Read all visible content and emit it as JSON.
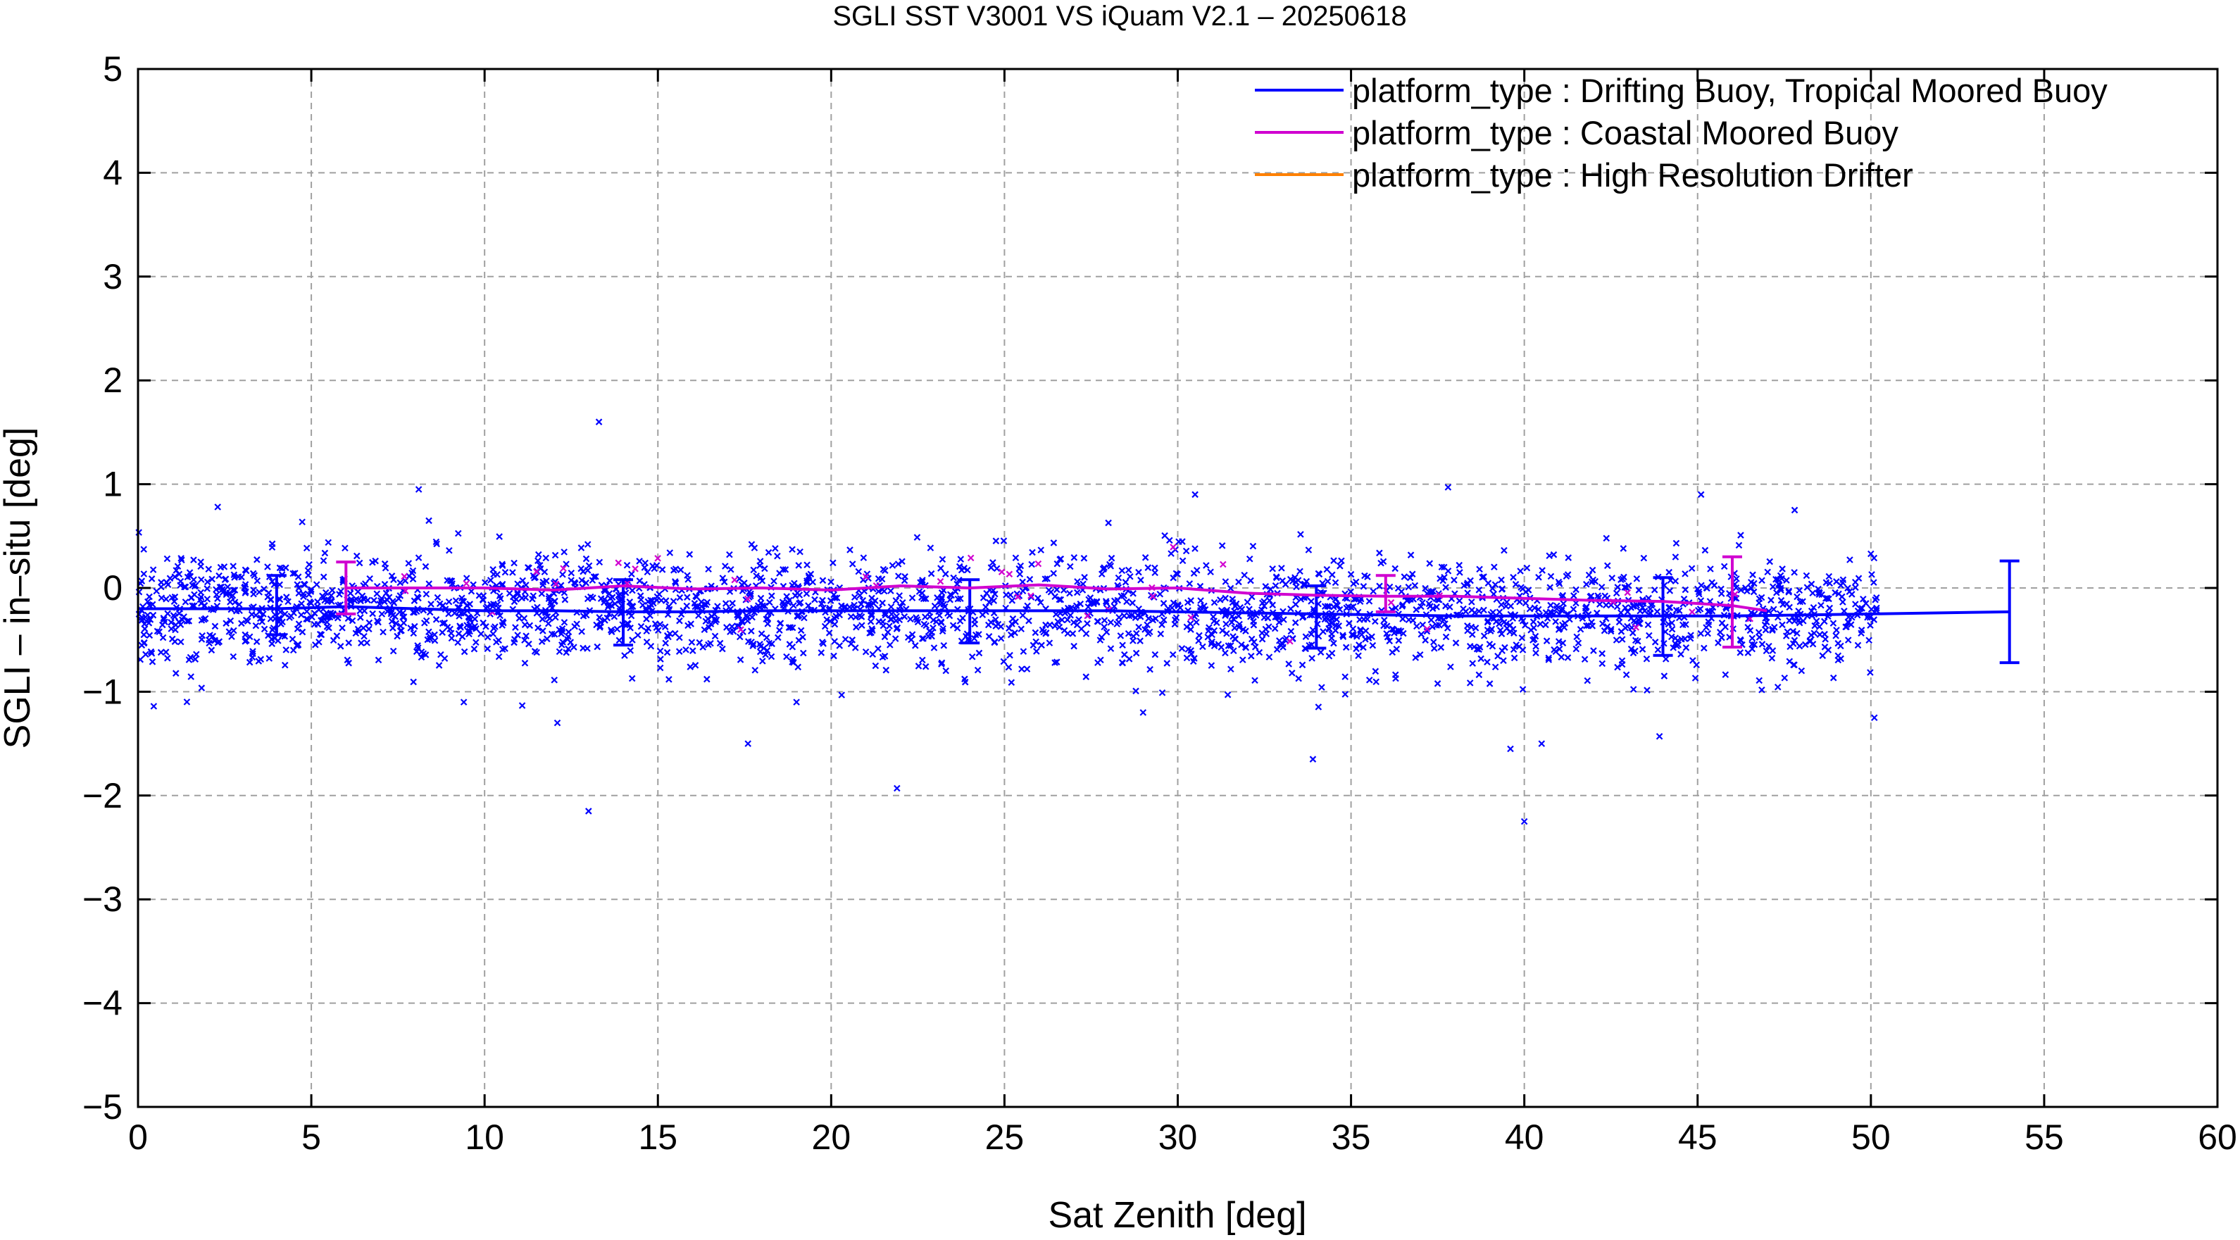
{
  "chart_data": {
    "type": "scatter",
    "title": "SGLI SST V3001 VS iQuam V2.1  – 20250618",
    "xlabel": "Sat Zenith [deg]",
    "ylabel": "SGLI – in–situ [deg]",
    "xlim": [
      0,
      60
    ],
    "ylim": [
      -5,
      5
    ],
    "x_ticks": [
      "0",
      "5",
      "10",
      "15",
      "20",
      "25",
      "30",
      "35",
      "40",
      "45",
      "50",
      "55",
      "60"
    ],
    "y_ticks": [
      "−5",
      "−4",
      "−3",
      "−2",
      "−1",
      "0",
      "1",
      "2",
      "3",
      "4",
      "5"
    ],
    "grid": true,
    "legend_position": "top-right",
    "series": [
      {
        "name": "platform_type : Drifting Buoy, Tropical Moored Buoy",
        "color": "#0000ff",
        "mean_line": {
          "x": [
            0,
            4,
            6,
            8,
            10,
            12,
            14,
            16,
            18,
            20,
            22,
            24,
            26,
            28,
            30,
            32,
            34,
            36,
            38,
            40,
            42,
            44,
            46,
            48,
            50,
            54
          ],
          "y": [
            -0.2,
            -0.2,
            -0.18,
            -0.2,
            -0.22,
            -0.22,
            -0.23,
            -0.23,
            -0.22,
            -0.22,
            -0.22,
            -0.22,
            -0.22,
            -0.22,
            -0.23,
            -0.24,
            -0.25,
            -0.26,
            -0.27,
            -0.27,
            -0.27,
            -0.27,
            -0.27,
            -0.26,
            -0.25,
            -0.23
          ]
        },
        "error_bars": [
          {
            "x": 4,
            "mean": -0.2,
            "low": -0.45,
            "high": 0.12
          },
          {
            "x": 14,
            "mean": -0.23,
            "low": -0.55,
            "high": 0.08
          },
          {
            "x": 24,
            "mean": -0.22,
            "low": -0.53,
            "high": 0.08
          },
          {
            "x": 34,
            "mean": -0.25,
            "low": -0.58,
            "high": 0.02
          },
          {
            "x": 44,
            "mean": -0.27,
            "low": -0.65,
            "high": 0.1
          },
          {
            "x": 54,
            "mean": -0.23,
            "low": -0.72,
            "high": 0.26
          }
        ],
        "outliers": [
          {
            "x": 13.3,
            "y": 1.6
          },
          {
            "x": 13.0,
            "y": -2.15
          },
          {
            "x": 40.0,
            "y": -2.25
          },
          {
            "x": 21.9,
            "y": -1.93
          },
          {
            "x": 17.6,
            "y": -1.5
          },
          {
            "x": 33.9,
            "y": -1.65
          },
          {
            "x": 30.5,
            "y": 0.9
          },
          {
            "x": 37.8,
            "y": 0.97
          },
          {
            "x": 8.1,
            "y": 0.95
          },
          {
            "x": 2.3,
            "y": 0.78
          },
          {
            "x": 45.1,
            "y": 0.9
          },
          {
            "x": 50.1,
            "y": -1.25
          },
          {
            "x": 43.9,
            "y": -1.43
          },
          {
            "x": 12.1,
            "y": -1.3
          },
          {
            "x": 40.5,
            "y": -1.5
          },
          {
            "x": 19.0,
            "y": -1.1
          },
          {
            "x": 9.4,
            "y": -1.1
          },
          {
            "x": 29.0,
            "y": -1.2
          },
          {
            "x": 39.6,
            "y": -1.55
          },
          {
            "x": 47.8,
            "y": 0.75
          }
        ]
      },
      {
        "name": "platform_type : Coastal Moored Buoy",
        "color": "#d000d0",
        "mean_line": {
          "x": [
            6,
            8,
            10,
            12,
            14,
            16,
            18,
            20,
            22,
            24,
            26,
            28,
            30,
            32,
            34,
            36,
            38,
            40,
            42,
            44,
            46,
            47
          ],
          "y": [
            0.0,
            0.0,
            0.0,
            -0.02,
            0.02,
            -0.01,
            0.0,
            -0.02,
            0.02,
            0.0,
            0.03,
            -0.01,
            0.0,
            -0.05,
            -0.07,
            -0.08,
            -0.08,
            -0.1,
            -0.12,
            -0.13,
            -0.17,
            -0.22
          ]
        },
        "error_bars": [
          {
            "x": 6,
            "mean": 0.0,
            "low": -0.25,
            "high": 0.25
          },
          {
            "x": 36,
            "mean": -0.08,
            "low": -0.23,
            "high": 0.12
          },
          {
            "x": 46,
            "mean": -0.17,
            "low": -0.57,
            "high": 0.3
          }
        ]
      },
      {
        "name": "platform_type : High Resolution Drifter",
        "color": "#ff8000"
      }
    ]
  }
}
